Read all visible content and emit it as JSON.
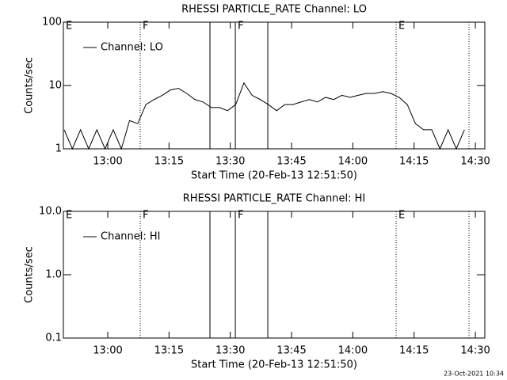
{
  "chart_data": [
    {
      "type": "line",
      "title": "RHESSI PARTICLE_RATE Channel: LO",
      "xlabel": "Start Time (20-Feb-13 12:51:50)",
      "ylabel": "Counts/sec",
      "log_y": true,
      "xlim": [
        -162,
        6029
      ],
      "ylim": [
        1,
        100
      ],
      "yticks": [
        1,
        10,
        100
      ],
      "xticks": [
        {
          "value": 490,
          "label": "13:00"
        },
        {
          "value": 1390,
          "label": "13:15"
        },
        {
          "value": 2290,
          "label": "13:30"
        },
        {
          "value": 3190,
          "label": "13:45"
        },
        {
          "value": 4090,
          "label": "14:00"
        },
        {
          "value": 4990,
          "label": "14:15"
        },
        {
          "value": 5890,
          "label": "14:30"
        }
      ],
      "vlines": [
        {
          "x": 967,
          "style": "dotted"
        },
        {
          "x": 1991,
          "style": "solid"
        },
        {
          "x": 2364,
          "style": "solid"
        },
        {
          "x": 2841,
          "style": "solid"
        },
        {
          "x": 4726,
          "style": "dotted"
        },
        {
          "x": 5797,
          "style": "dotted"
        }
      ],
      "flags": [
        {
          "x": -162,
          "label": "E"
        },
        {
          "x": 967,
          "label": "F"
        },
        {
          "x": 2364,
          "label": "F"
        },
        {
          "x": 4726,
          "label": "E"
        }
      ],
      "x": [
        -150,
        -30,
        90,
        210,
        330,
        450,
        570,
        690,
        810,
        930,
        1050,
        1170,
        1290,
        1410,
        1530,
        1650,
        1770,
        1890,
        2010,
        2130,
        2250,
        2370,
        2490,
        2610,
        2730,
        2850,
        2970,
        3090,
        3210,
        3330,
        3450,
        3570,
        3690,
        3810,
        3930,
        4050,
        4170,
        4290,
        4410,
        4530,
        4650,
        4770,
        4890,
        5010,
        5130,
        5250,
        5370,
        5490,
        5610,
        5730
      ],
      "series": [
        {
          "name": "Channel: LO",
          "color": "#000000",
          "values": [
            2,
            1,
            2,
            1,
            2,
            1,
            2,
            1,
            2.8,
            2.5,
            5,
            6,
            7,
            8.5,
            9,
            7.5,
            6,
            5.5,
            4.5,
            4.5,
            4,
            5,
            11,
            7,
            6,
            5,
            4,
            5,
            5,
            5.5,
            6,
            5.5,
            6.5,
            6,
            7,
            6.5,
            7,
            7.5,
            7.5,
            8,
            7.5,
            6.5,
            5,
            2.5,
            2,
            2,
            1,
            2,
            1,
            2
          ]
        }
      ]
    },
    {
      "type": "line",
      "title": "RHESSI PARTICLE_RATE Channel: HI",
      "xlabel": "Start Time (20-Feb-13 12:51:50)",
      "ylabel": "Counts/sec",
      "log_y": true,
      "xlim": [
        -162,
        6029
      ],
      "ylim": [
        0.1,
        10
      ],
      "yticks": [
        0.1,
        {
          "value": 1,
          "label": "1.0"
        },
        {
          "value": 10,
          "label": "10.0"
        }
      ],
      "xticks": [
        {
          "value": 490,
          "label": "13:00"
        },
        {
          "value": 1390,
          "label": "13:15"
        },
        {
          "value": 2290,
          "label": "13:30"
        },
        {
          "value": 3190,
          "label": "13:45"
        },
        {
          "value": 4090,
          "label": "14:00"
        },
        {
          "value": 4990,
          "label": "14:15"
        },
        {
          "value": 5890,
          "label": "14:30"
        }
      ],
      "vlines": [
        {
          "x": 967,
          "style": "dotted"
        },
        {
          "x": 1991,
          "style": "solid"
        },
        {
          "x": 2364,
          "style": "solid"
        },
        {
          "x": 2841,
          "style": "solid"
        },
        {
          "x": 4726,
          "style": "dotted"
        },
        {
          "x": 5797,
          "style": "dotted"
        }
      ],
      "flags": [
        {
          "x": -162,
          "label": "E"
        },
        {
          "x": 967,
          "label": "F"
        },
        {
          "x": 2364,
          "label": "F"
        },
        {
          "x": 4726,
          "label": "E"
        }
      ],
      "x": [],
      "series": [
        {
          "name": "Channel: HI",
          "color": "#000000",
          "values": []
        }
      ]
    }
  ],
  "footer": "23-Oct-2021 10:34"
}
